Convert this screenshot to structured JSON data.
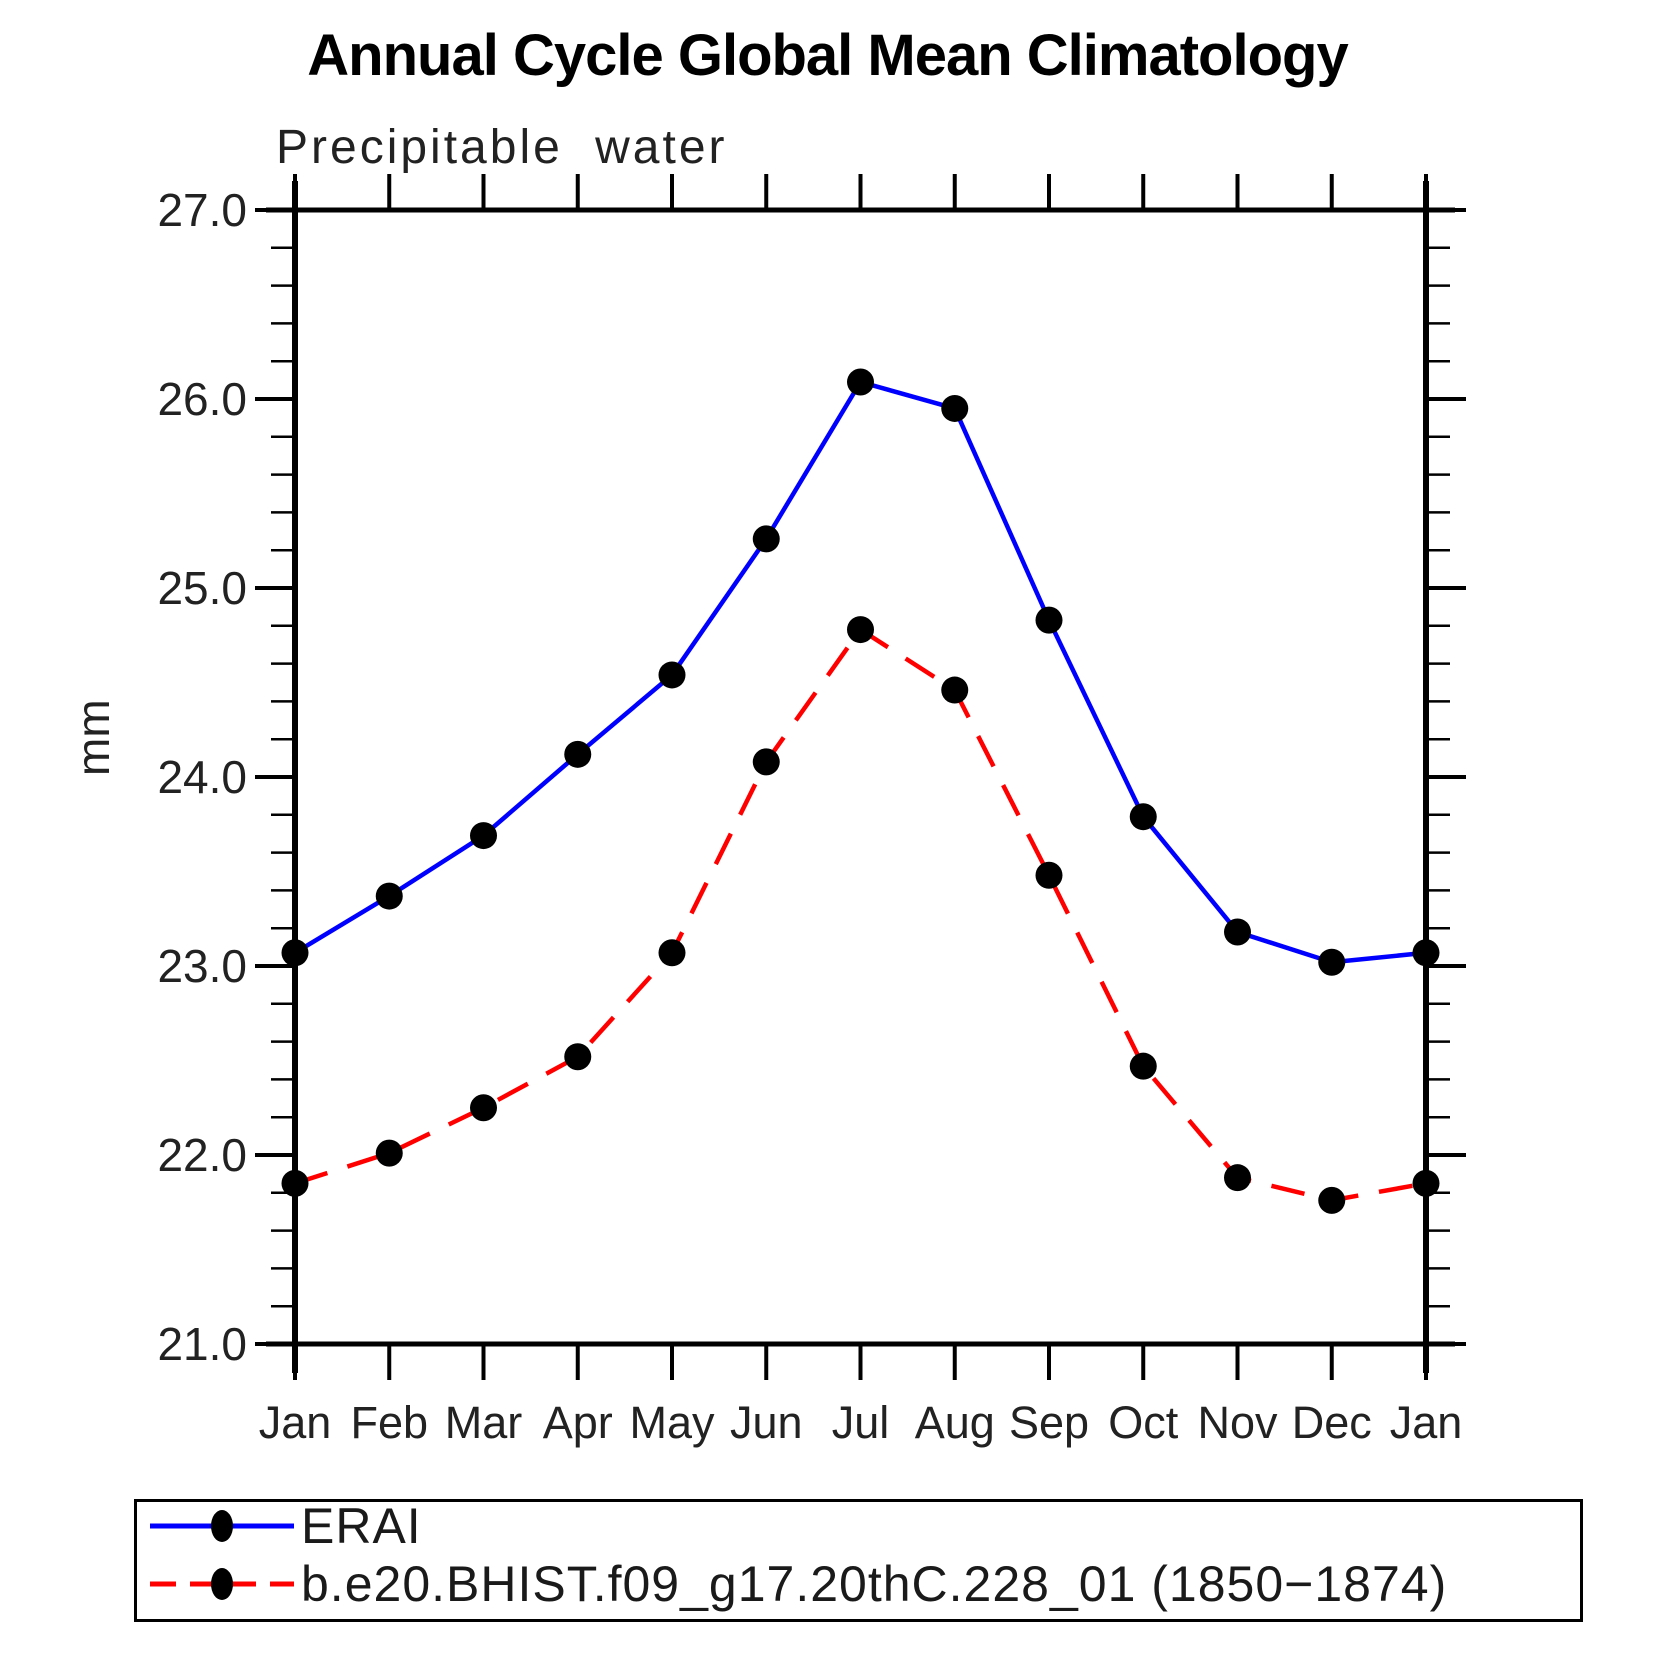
{
  "title": "Annual Cycle Global Mean Climatology",
  "subtitle": "Precipitable water",
  "y_axis": {
    "label": "mm"
  },
  "legend": {
    "position": "bottom",
    "entries": [
      {
        "label": "ERAI",
        "line_color": "#0000ff",
        "line_style": "solid",
        "marker": "filled-circle"
      },
      {
        "label": "b.e20.BHIST.f09_g17.20thC.228_01 (1850−1874)",
        "line_color": "#ff0000",
        "line_style": "dashed",
        "marker": "filled-circle"
      }
    ]
  },
  "chart_data": {
    "type": "line",
    "title": "Annual Cycle Global Mean Climatology",
    "subtitle": "Precipitable water",
    "xlabel": "",
    "ylabel": "mm",
    "categories": [
      "Jan",
      "Feb",
      "Mar",
      "Apr",
      "May",
      "Jun",
      "Jul",
      "Aug",
      "Sep",
      "Oct",
      "Nov",
      "Dec",
      "Jan"
    ],
    "ylim": [
      21.0,
      27.0
    ],
    "y_major_ticks": [
      21.0,
      22.0,
      23.0,
      24.0,
      25.0,
      26.0,
      27.0
    ],
    "y_minor_step": 0.2,
    "grid": false,
    "legend_position": "bottom",
    "marker_color": "#000000",
    "series": [
      {
        "name": "ERAI",
        "color": "#0000ff",
        "style": "solid",
        "values": [
          23.07,
          23.37,
          23.69,
          24.12,
          24.54,
          25.26,
          26.09,
          25.95,
          24.83,
          23.79,
          23.18,
          23.02,
          23.07
        ]
      },
      {
        "name": "b.e20.BHIST.f09_g17.20thC.228_01 (1850−1874)",
        "color": "#ff0000",
        "style": "dashed",
        "values": [
          21.85,
          22.01,
          22.25,
          22.52,
          23.07,
          24.08,
          24.78,
          24.46,
          23.48,
          22.47,
          21.88,
          21.76,
          21.85
        ]
      }
    ]
  }
}
